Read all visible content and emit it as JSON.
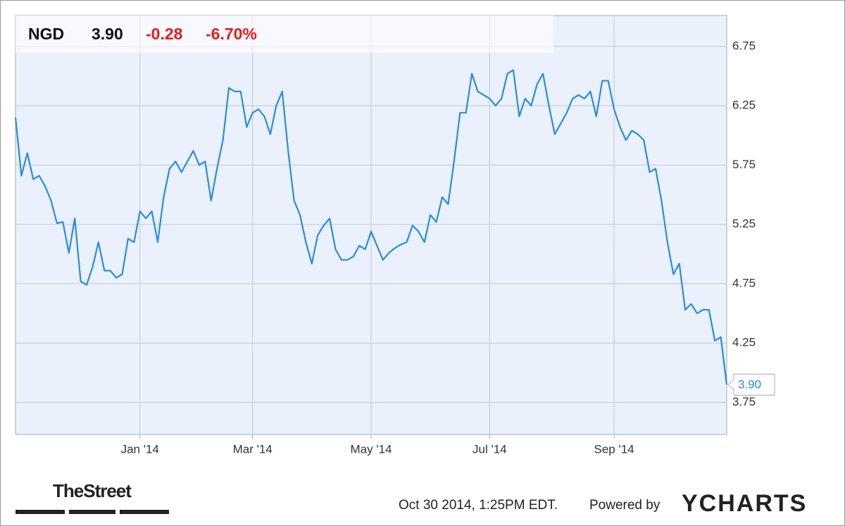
{
  "chart_data": {
    "type": "line",
    "ticker": "NGD",
    "price": "3.90",
    "change": "-0.28",
    "change_pct": "-6.70%",
    "categories": [
      null,
      null,
      null,
      null,
      null,
      null,
      null,
      null,
      null,
      null,
      null,
      null,
      null,
      null,
      null,
      null,
      null,
      null,
      null,
      null,
      null,
      "Jan '14",
      null,
      null,
      null,
      null,
      null,
      null,
      null,
      null,
      null,
      null,
      null,
      null,
      null,
      null,
      null,
      null,
      null,
      null,
      "Mar '14",
      null,
      null,
      null,
      null,
      null,
      null,
      null,
      null,
      null,
      null,
      null,
      null,
      null,
      null,
      null,
      null,
      null,
      null,
      null,
      "May '14",
      null,
      null,
      null,
      null,
      null,
      null,
      null,
      null,
      null,
      null,
      null,
      null,
      null,
      null,
      null,
      null,
      null,
      null,
      null,
      "Jul '14",
      null,
      null,
      null,
      null,
      null,
      null,
      null,
      null,
      null,
      null,
      null,
      null,
      null,
      null,
      null,
      null,
      null,
      null,
      null,
      null,
      "Sep '14",
      null,
      null,
      null,
      null,
      null,
      null,
      null,
      null,
      null,
      null,
      null,
      null,
      null,
      null,
      null,
      null,
      null,
      null,
      null
    ],
    "series": [
      {
        "name": "NGD",
        "color": "#2a8be0",
        "values": [
          6.15,
          5.66,
          5.85,
          5.63,
          5.66,
          5.57,
          5.45,
          5.26,
          5.27,
          5.01,
          5.3,
          4.77,
          4.74,
          4.89,
          5.1,
          4.86,
          4.86,
          4.8,
          4.83,
          5.13,
          5.1,
          5.36,
          5.3,
          5.36,
          5.1,
          5.48,
          5.72,
          5.78,
          5.69,
          5.78,
          5.87,
          5.75,
          5.78,
          5.45,
          5.72,
          5.96,
          6.4,
          6.37,
          6.37,
          6.07,
          6.19,
          6.22,
          6.16,
          6.01,
          6.25,
          6.37,
          5.87,
          5.45,
          5.33,
          5.1,
          4.92,
          5.16,
          5.24,
          5.3,
          5.04,
          4.95,
          4.95,
          4.98,
          5.07,
          5.04,
          5.19,
          5.07,
          4.95,
          5.01,
          5.05,
          5.08,
          5.1,
          5.24,
          5.19,
          5.1,
          5.33,
          5.27,
          5.48,
          5.42,
          5.78,
          6.19,
          6.19,
          6.52,
          6.37,
          6.34,
          6.31,
          6.25,
          6.31,
          6.52,
          6.55,
          6.16,
          6.31,
          6.25,
          6.43,
          6.52,
          6.25,
          6.01,
          6.1,
          6.19,
          6.31,
          6.34,
          6.31,
          6.37,
          6.16,
          6.46,
          6.46,
          6.22,
          6.07,
          5.96,
          6.04,
          6.01,
          5.96,
          5.69,
          5.72,
          5.45,
          5.1,
          4.83,
          4.92,
          4.53,
          4.58,
          4.5,
          4.53,
          4.53,
          4.27,
          4.3,
          3.9
        ]
      }
    ],
    "ylim": [
      3.48,
      7.01
    ],
    "yticks": [
      3.75,
      4.25,
      4.75,
      5.25,
      5.75,
      6.25,
      6.75
    ],
    "grid": true,
    "source": "TheStreet",
    "timestamp": "Oct 30 2014, 1:25PM EDT.",
    "powered_by": "Powered by",
    "brand": "YCHARTS"
  }
}
